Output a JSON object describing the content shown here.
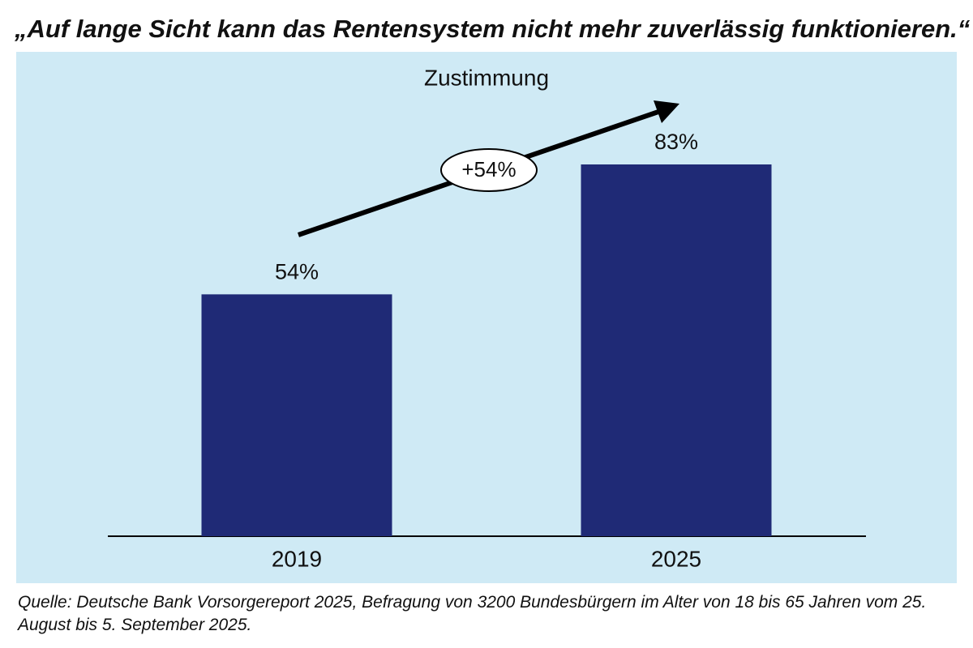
{
  "chart_data": {
    "type": "bar",
    "title": "„Auf lange Sicht kann das Rentensystem nicht mehr zuverlässig funktionieren.“",
    "subtitle": "Zustimmung",
    "categories": [
      "2019",
      "2025"
    ],
    "values": [
      54,
      83
    ],
    "value_labels": [
      "54%",
      "83%"
    ],
    "color": "#1f2a76",
    "annotation": "+54%",
    "source": "Quelle: Deutsche Bank Vorsorgereport 2025, Befragung von 3200 Bundesbürgern im Alter von 18 bis 65 Jahren vom 25. August bis 5. September 2025."
  }
}
